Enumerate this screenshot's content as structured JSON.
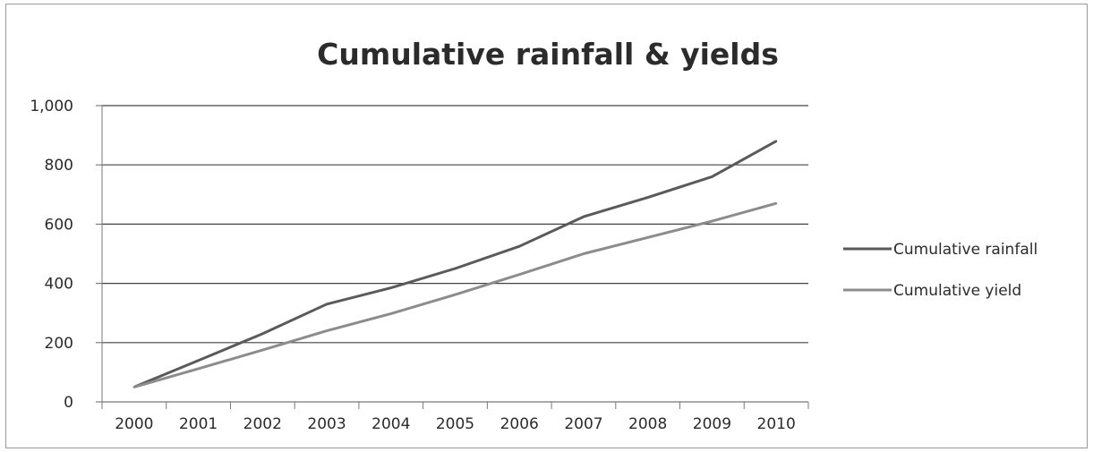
{
  "chart_data": {
    "type": "line",
    "title": "Cumulative rainfall & yields",
    "xlabel": "",
    "ylabel": "",
    "categories": [
      "2000",
      "2001",
      "2002",
      "2003",
      "2004",
      "2005",
      "2006",
      "2007",
      "2008",
      "2009",
      "2010"
    ],
    "ylim": [
      0,
      1000
    ],
    "yticks": [
      0,
      200,
      400,
      600,
      800,
      1000
    ],
    "ytick_labels": [
      "0",
      "200",
      "400",
      "600",
      "800",
      "1,000"
    ],
    "grid": true,
    "legend_position": "right",
    "series": [
      {
        "name": "Cumulative rainfall",
        "color": "#5a5a5a",
        "values": [
          50,
          140,
          230,
          330,
          385,
          450,
          525,
          625,
          690,
          760,
          880
        ]
      },
      {
        "name": "Cumulative yield",
        "color": "#8c8c8c",
        "values": [
          50,
          112,
          175,
          240,
          298,
          362,
          430,
          500,
          555,
          610,
          670
        ]
      }
    ]
  }
}
